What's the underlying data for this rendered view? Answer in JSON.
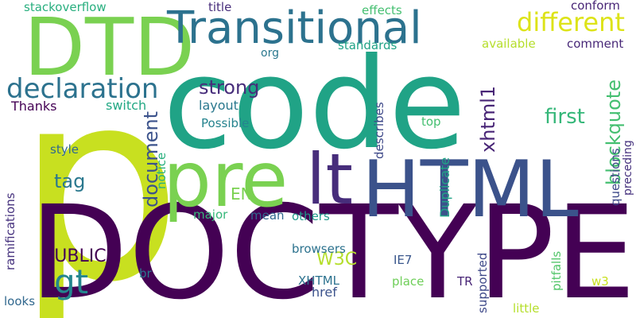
{
  "palette": {
    "background": "#ffffff",
    "dark_purple": "#440154",
    "indigo": "#3b528b",
    "blue": "#31688e",
    "teal": "#21918c",
    "green": "#35b779",
    "light_green": "#6ece58",
    "lime": "#90d743",
    "yellow_green": "#b5de2b",
    "yellow": "#dde318"
  },
  "words": [
    {
      "text": "p",
      "color": "#c8e020"
    },
    {
      "text": "code",
      "color": "#20a386"
    },
    {
      "text": "DOCTYPE",
      "color": "#440154"
    },
    {
      "text": "HTML",
      "color": "#3b528b"
    },
    {
      "text": "DTD",
      "color": "#7ad151"
    },
    {
      "text": "Transitional",
      "color": "#2c728e"
    },
    {
      "text": "pre",
      "color": "#7ad151"
    },
    {
      "text": "lt",
      "color": "#472d7b"
    },
    {
      "text": "gt",
      "color": "#24868e"
    },
    {
      "text": "declaration",
      "color": "#2c728e"
    },
    {
      "text": "different",
      "color": "#dde318"
    },
    {
      "text": "strong",
      "color": "#472d7b"
    },
    {
      "text": "document",
      "color": "#3b528b"
    },
    {
      "text": "blockquote",
      "color": "#44bf70"
    },
    {
      "text": "first",
      "color": "#35b779"
    },
    {
      "text": "xhtml1",
      "color": "#482576"
    },
    {
      "text": "tag",
      "color": "#2a788e"
    },
    {
      "text": "PUBLIC",
      "color": "#440154"
    },
    {
      "text": "W3C",
      "color": "#b5de2b"
    },
    {
      "text": "EN",
      "color": "#7ad151"
    },
    {
      "text": "stackoverflow",
      "color": "#29af7f"
    },
    {
      "text": "title",
      "color": "#472d7b"
    },
    {
      "text": "effects",
      "color": "#44bf70"
    },
    {
      "text": "conform",
      "color": "#482576"
    },
    {
      "text": "standards",
      "color": "#20a386"
    },
    {
      "text": "available",
      "color": "#b5de2b"
    },
    {
      "text": "comment",
      "color": "#482878"
    },
    {
      "text": "org",
      "color": "#2a788e"
    },
    {
      "text": "Thanks",
      "color": "#440154"
    },
    {
      "text": "switch",
      "color": "#22a884"
    },
    {
      "text": "layout",
      "color": "#2a788e"
    },
    {
      "text": "Possible",
      "color": "#25838e"
    },
    {
      "text": "top",
      "color": "#44bf70"
    },
    {
      "text": "describes",
      "color": "#3e4989"
    },
    {
      "text": "style",
      "color": "#31688e"
    },
    {
      "text": "notice",
      "color": "#2ab07f"
    },
    {
      "text": "Duplicate",
      "color": "#20a386"
    },
    {
      "text": "questions",
      "color": "#3e4989"
    },
    {
      "text": "preceding",
      "color": "#46327e"
    },
    {
      "text": "ramifications",
      "color": "#46327e"
    },
    {
      "text": "major",
      "color": "#35b779"
    },
    {
      "text": "mean",
      "color": "#31688e"
    },
    {
      "text": "others",
      "color": "#1f9a8a"
    },
    {
      "text": "browsers",
      "color": "#2c728e"
    },
    {
      "text": "IE7",
      "color": "#39568c"
    },
    {
      "text": "br",
      "color": "#2a788e"
    },
    {
      "text": "XHTML",
      "color": "#2c728e"
    },
    {
      "text": "href",
      "color": "#3b528b"
    },
    {
      "text": "place",
      "color": "#6ece58"
    },
    {
      "text": "TR",
      "color": "#482576"
    },
    {
      "text": "supported",
      "color": "#3e4989"
    },
    {
      "text": "pitfalls",
      "color": "#52c569"
    },
    {
      "text": "w3",
      "color": "#c8e020"
    },
    {
      "text": "looks",
      "color": "#31688e"
    },
    {
      "text": "little",
      "color": "#b5de2b"
    }
  ]
}
